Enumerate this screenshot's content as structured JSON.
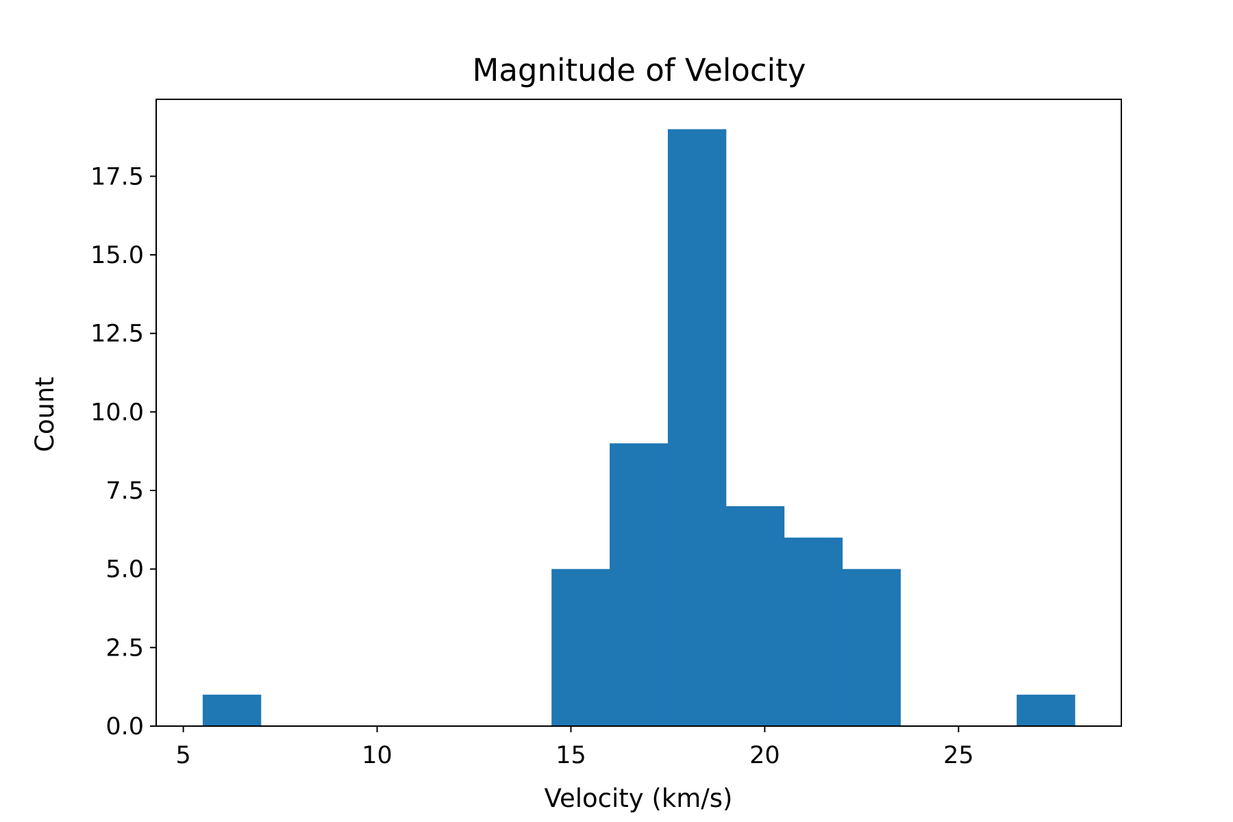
{
  "chart_data": {
    "type": "bar",
    "title": "Magnitude of Velocity",
    "xlabel": "Velocity (km/s)",
    "ylabel": "Count",
    "bins": [
      {
        "x0": 5.5,
        "x1": 7.0,
        "value": 1
      },
      {
        "x0": 7.0,
        "x1": 8.5,
        "value": 0
      },
      {
        "x0": 8.5,
        "x1": 10.0,
        "value": 0
      },
      {
        "x0": 10.0,
        "x1": 11.5,
        "value": 0
      },
      {
        "x0": 11.5,
        "x1": 13.0,
        "value": 0
      },
      {
        "x0": 13.0,
        "x1": 14.5,
        "value": 0
      },
      {
        "x0": 14.5,
        "x1": 16.0,
        "value": 5
      },
      {
        "x0": 16.0,
        "x1": 17.5,
        "value": 9
      },
      {
        "x0": 17.5,
        "x1": 19.0,
        "value": 19
      },
      {
        "x0": 19.0,
        "x1": 20.5,
        "value": 7
      },
      {
        "x0": 20.5,
        "x1": 22.0,
        "value": 6
      },
      {
        "x0": 22.0,
        "x1": 23.5,
        "value": 5
      },
      {
        "x0": 23.5,
        "x1": 25.0,
        "value": 0
      },
      {
        "x0": 25.0,
        "x1": 26.5,
        "value": 0
      },
      {
        "x0": 26.5,
        "x1": 28.0,
        "value": 1
      }
    ],
    "xlim": [
      4.3,
      29.2
    ],
    "ylim": [
      0,
      19.95
    ],
    "xticks": [
      {
        "value": 5,
        "label": "5"
      },
      {
        "value": 10,
        "label": "10"
      },
      {
        "value": 15,
        "label": "15"
      },
      {
        "value": 20,
        "label": "20"
      },
      {
        "value": 25,
        "label": "25"
      }
    ],
    "yticks": [
      {
        "value": 0,
        "label": "0.0"
      },
      {
        "value": 2.5,
        "label": "2.5"
      },
      {
        "value": 5,
        "label": "5.0"
      },
      {
        "value": 7.5,
        "label": "7.5"
      },
      {
        "value": 10,
        "label": "10.0"
      },
      {
        "value": 12.5,
        "label": "12.5"
      },
      {
        "value": 15,
        "label": "15.0"
      },
      {
        "value": 17.5,
        "label": "17.5"
      }
    ],
    "grid": false,
    "bar_color": "#1f77b4"
  }
}
